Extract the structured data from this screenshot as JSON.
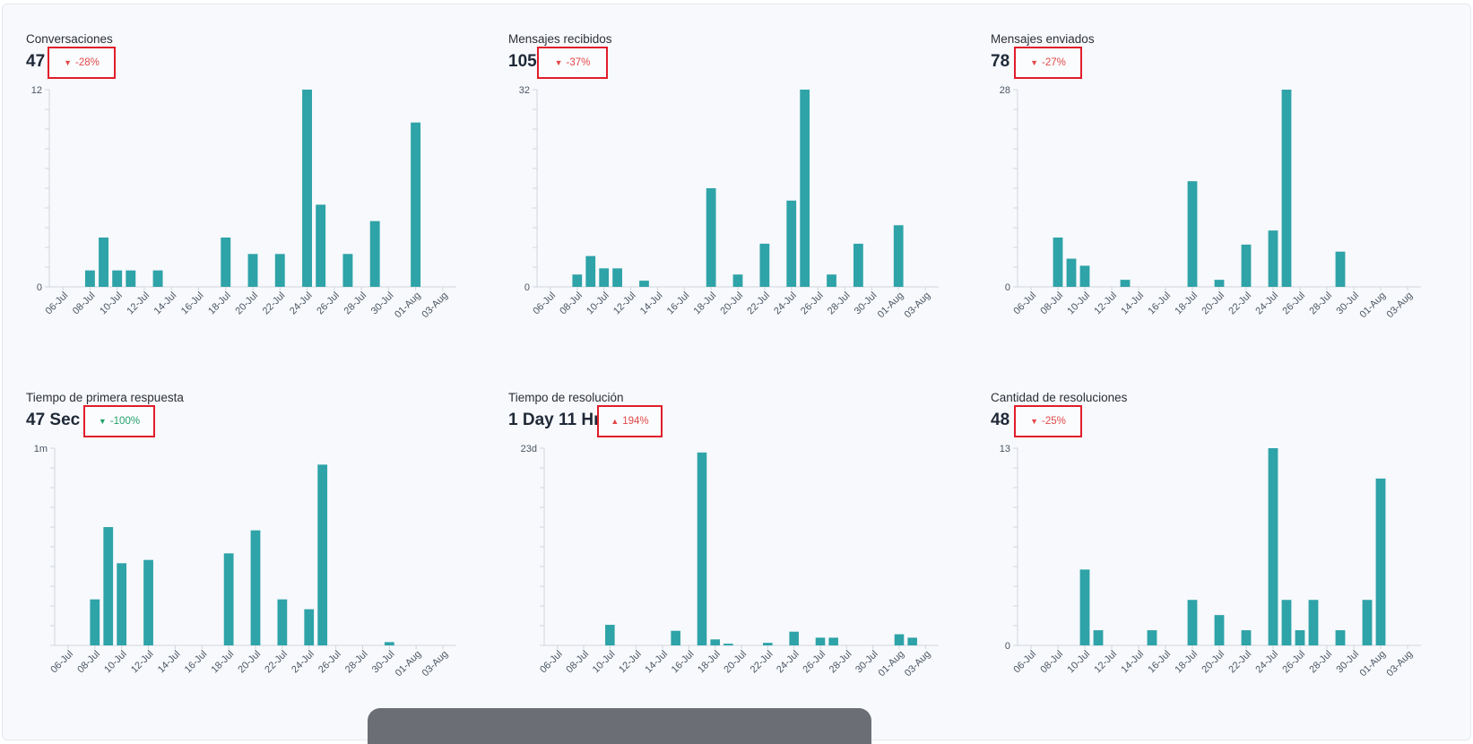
{
  "colors": {
    "bar": "#2ea3a8",
    "negative": "#e24848",
    "positive": "#22a06b",
    "highlight": "#e11d2a"
  },
  "dates": [
    "06-Jul",
    "07-Jul",
    "08-Jul",
    "09-Jul",
    "10-Jul",
    "11-Jul",
    "12-Jul",
    "13-Jul",
    "14-Jul",
    "15-Jul",
    "16-Jul",
    "17-Jul",
    "18-Jul",
    "19-Jul",
    "20-Jul",
    "21-Jul",
    "22-Jul",
    "23-Jul",
    "24-Jul",
    "25-Jul",
    "26-Jul",
    "27-Jul",
    "28-Jul",
    "29-Jul",
    "30-Jul",
    "31-Jul",
    "01-Aug",
    "02-Aug",
    "03-Aug"
  ],
  "tick_labels": [
    "06-Jul",
    "08-Jul",
    "10-Jul",
    "12-Jul",
    "14-Jul",
    "16-Jul",
    "18-Jul",
    "20-Jul",
    "22-Jul",
    "24-Jul",
    "26-Jul",
    "28-Jul",
    "30-Jul",
    "01-Aug",
    "03-Aug"
  ],
  "metrics": [
    {
      "title": "Conversaciones",
      "value": "47",
      "trend": {
        "direction": "down",
        "icon": "triangle-down-icon",
        "text": "-28%",
        "sentiment": "negative"
      }
    },
    {
      "title": "Mensajes recibidos",
      "value": "105",
      "trend": {
        "direction": "down",
        "icon": "triangle-down-icon",
        "text": "-37%",
        "sentiment": "negative"
      }
    },
    {
      "title": "Mensajes enviados",
      "value": "78",
      "trend": {
        "direction": "down",
        "icon": "triangle-down-icon",
        "text": "-27%",
        "sentiment": "negative"
      }
    },
    {
      "title": "Tiempo de primera respuesta",
      "value": "47 Sec",
      "trend": {
        "direction": "down",
        "icon": "triangle-down-icon",
        "text": "-100%",
        "sentiment": "positive"
      }
    },
    {
      "title": "Tiempo de resolución",
      "value": "1 Day 11 Hr",
      "trend": {
        "direction": "up",
        "icon": "triangle-up-icon",
        "text": "194%",
        "sentiment": "negative"
      }
    },
    {
      "title": "Cantidad de resoluciones",
      "value": "48",
      "trend": {
        "direction": "down",
        "icon": "triangle-down-icon",
        "text": "-25%",
        "sentiment": "negative"
      }
    }
  ],
  "chart_data": [
    {
      "type": "bar",
      "x": "dates",
      "y_max_label": "12",
      "y_min_label": "0",
      "ylim": [
        0,
        12
      ],
      "values": [
        0,
        0,
        1,
        3,
        1,
        1,
        0,
        1,
        0,
        0,
        0,
        0,
        3,
        0,
        2,
        0,
        2,
        0,
        12,
        5,
        0,
        2,
        0,
        4,
        0,
        0,
        10,
        0,
        0
      ]
    },
    {
      "type": "bar",
      "x": "dates",
      "y_max_label": "32",
      "y_min_label": "0",
      "ylim": [
        0,
        32
      ],
      "values": [
        0,
        0,
        2,
        5,
        3,
        3,
        0,
        1,
        0,
        0,
        0,
        0,
        16,
        0,
        2,
        0,
        7,
        0,
        14,
        32,
        0,
        2,
        0,
        7,
        0,
        0,
        10,
        0,
        0
      ]
    },
    {
      "type": "bar",
      "x": "dates",
      "y_max_label": "28",
      "y_min_label": "0",
      "ylim": [
        0,
        28
      ],
      "values": [
        0,
        0,
        7,
        4,
        3,
        0,
        0,
        1,
        0,
        0,
        0,
        0,
        15,
        0,
        1,
        0,
        6,
        0,
        8,
        28,
        0,
        0,
        0,
        5,
        0,
        0,
        0,
        0,
        0
      ]
    },
    {
      "type": "bar",
      "x": "dates",
      "y_max_label": "1m",
      "y_min_label": "",
      "ylim": [
        0,
        60
      ],
      "unit": "seconds",
      "values": [
        0,
        0,
        14,
        36,
        25,
        0,
        26,
        0,
        0,
        0,
        0,
        0,
        28,
        0,
        35,
        0,
        14,
        0,
        11,
        55,
        0,
        0,
        0,
        0,
        1,
        0,
        0,
        0,
        0
      ]
    },
    {
      "type": "bar",
      "x": "dates",
      "y_max_label": "23d",
      "y_min_label": "",
      "ylim": [
        0,
        23
      ],
      "unit": "days",
      "values": [
        0,
        0,
        0,
        0,
        2.4,
        0,
        0,
        0,
        0,
        1.7,
        0,
        22.5,
        0.7,
        0.2,
        0,
        0,
        0.3,
        0,
        1.6,
        0,
        0.9,
        0.9,
        0,
        0,
        0,
        0,
        1.3,
        0.9,
        0
      ]
    },
    {
      "type": "bar",
      "x": "dates",
      "y_max_label": "13",
      "y_min_label": "0",
      "ylim": [
        0,
        13
      ],
      "values": [
        0,
        0,
        0,
        0,
        5,
        1,
        0,
        0,
        0,
        1,
        0,
        0,
        3,
        0,
        2,
        0,
        1,
        0,
        13,
        3,
        1,
        3,
        0,
        1,
        0,
        3,
        11,
        0,
        0
      ]
    }
  ]
}
